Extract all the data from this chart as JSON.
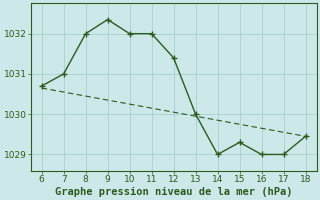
{
  "x_data": [
    6,
    7,
    8,
    9,
    10,
    11,
    12,
    13,
    14,
    15,
    16,
    17,
    18
  ],
  "y_data": [
    1030.7,
    1031.0,
    1032.0,
    1032.35,
    1032.0,
    1032.0,
    1031.4,
    1030.0,
    1029.0,
    1029.3,
    1029.0,
    1029.0,
    1029.45
  ],
  "trend_x": [
    6,
    18
  ],
  "trend_y": [
    1030.65,
    1029.45
  ],
  "line_color": "#2d5a1e",
  "bg_color": "#cce8e8",
  "grid_color": "#aacece",
  "xlabel": "Graphe pression niveau de la mer (hPa)",
  "xlim": [
    5.5,
    18.5
  ],
  "ylim": [
    1028.6,
    1032.75
  ],
  "xticks": [
    6,
    7,
    8,
    9,
    10,
    11,
    12,
    13,
    14,
    15,
    16,
    17,
    18
  ],
  "yticks": [
    1029,
    1030,
    1031,
    1032
  ],
  "xlabel_fontsize": 7.5,
  "tick_fontsize": 6.5
}
